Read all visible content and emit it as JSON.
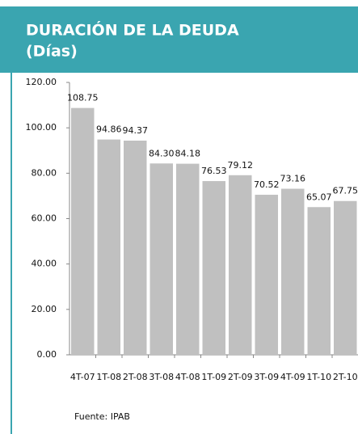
{
  "chart_data": {
    "type": "bar",
    "title": "DURACIÓN DE LA DEUDA",
    "subtitle": "(Días)",
    "categories": [
      "4T-07",
      "1T-08",
      "2T-08",
      "3T-08",
      "4T-08",
      "1T-09",
      "2T-09",
      "3T-09",
      "4T-09",
      "1T-10",
      "2T-10"
    ],
    "values": [
      108.75,
      94.86,
      94.37,
      84.3,
      84.18,
      76.53,
      79.12,
      70.52,
      73.16,
      65.07,
      67.75
    ],
    "value_labels": [
      "108.75",
      "94.86",
      "94.37",
      "84.30",
      "84.18",
      "76.53",
      "79.12",
      "70.52",
      "73.16",
      "65.07",
      "67.75"
    ],
    "color": "#c0c0c0",
    "ylim": [
      0,
      120
    ],
    "yticks": [
      {
        "value": 0,
        "label": "0.00"
      },
      {
        "value": 20,
        "label": "20.00"
      },
      {
        "value": 40,
        "label": "40.00"
      },
      {
        "value": 60,
        "label": "60.00"
      },
      {
        "value": 80,
        "label": "80.00"
      },
      {
        "value": 100,
        "label": "100.00"
      },
      {
        "value": 120,
        "label": "120.00"
      }
    ],
    "grid": false,
    "source": "Fuente: IPAB"
  }
}
